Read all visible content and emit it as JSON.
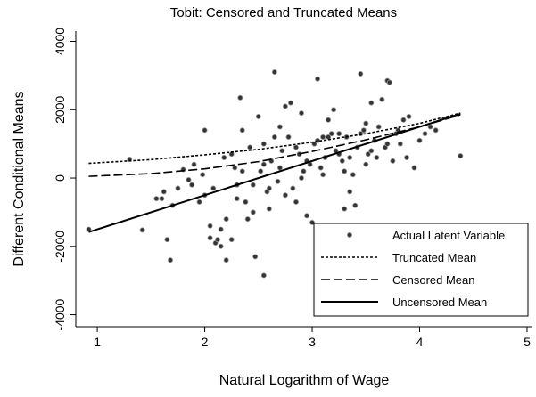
{
  "chart_data": {
    "type": "scatter",
    "title": "Tobit: Censored and Truncated Means",
    "xlabel": "Natural Logarithm of Wage",
    "ylabel": "Different Conditional Means",
    "xlim": [
      0.8,
      5.05
    ],
    "ylim": [
      -4350,
      4300
    ],
    "xticks": [
      1,
      2,
      3,
      4,
      5
    ],
    "yticks": [
      -4000,
      -2000,
      0,
      2000,
      4000
    ],
    "legend": "lower right",
    "series": [
      {
        "name": "Actual Latent Variable",
        "style": "points",
        "color": "#333333",
        "x": [
          0.92,
          1.42,
          1.3,
          1.65,
          1.68,
          1.55,
          1.62,
          1.7,
          1.75,
          1.8,
          1.85,
          1.9,
          1.95,
          2.0,
          2.0,
          2.05,
          2.1,
          2.12,
          2.15,
          2.2,
          2.2,
          2.25,
          2.3,
          2.33,
          2.35,
          2.4,
          2.45,
          2.47,
          2.5,
          2.55,
          2.55,
          2.6,
          2.65,
          2.7,
          2.75,
          2.8,
          2.85,
          2.9,
          2.95,
          3.0,
          3.05,
          3.1,
          3.15,
          3.2,
          3.25,
          3.3,
          3.35,
          3.4,
          3.45,
          3.5,
          3.55,
          3.6,
          3.65,
          3.7,
          3.72,
          3.75,
          3.8,
          3.85,
          3.9,
          3.95,
          4.05,
          4.1,
          4.0,
          4.38,
          4.15,
          1.88,
          1.98,
          2.08,
          2.18,
          2.28,
          2.38,
          2.42,
          2.52,
          2.58,
          2.62,
          2.68,
          2.72,
          2.78,
          2.82,
          2.88,
          2.92,
          2.98,
          3.02,
          3.08,
          3.12,
          3.18,
          3.22,
          3.28,
          3.32,
          3.38,
          3.42,
          3.48,
          3.52,
          3.58,
          3.62,
          3.68,
          3.78,
          3.82,
          3.88,
          2.15,
          2.25,
          2.35,
          2.45,
          2.55,
          2.65,
          2.75,
          2.85,
          2.95,
          3.05,
          3.15,
          3.25,
          3.35,
          3.45,
          3.55,
          2.05,
          2.6,
          2.9,
          3.1,
          3.3,
          3.5,
          3.7,
          1.6,
          2.3,
          2.7
        ],
        "values": [
          -1500,
          -1520,
          550,
          -1800,
          -2400,
          -600,
          -400,
          -800,
          -300,
          250,
          -50,
          400,
          -700,
          1400,
          -500,
          -1750,
          -1900,
          -1800,
          -2000,
          -1200,
          -2400,
          -1800,
          -600,
          2350,
          1400,
          -1200,
          -200,
          -2300,
          1800,
          -2850,
          1000,
          -900,
          3100,
          1500,
          2100,
          2200,
          -700,
          1900,
          -1100,
          -1300,
          2900,
          1200,
          1700,
          2000,
          1300,
          -900,
          -400,
          -800,
          3050,
          1600,
          2200,
          600,
          2300,
          2850,
          2800,
          500,
          1400,
          1700,
          1800,
          300,
          1300,
          1500,
          1100,
          650,
          1400,
          -200,
          100,
          -300,
          600,
          300,
          -700,
          900,
          200,
          -400,
          500,
          -100,
          800,
          1200,
          -300,
          700,
          200,
          400,
          1000,
          300,
          600,
          1300,
          800,
          500,
          1200,
          100,
          900,
          1400,
          700,
          1100,
          1500,
          900,
          1300,
          1000,
          600,
          -1500,
          700,
          200,
          -1000,
          400,
          1200,
          -500,
          900,
          500,
          1100,
          1200,
          700,
          600,
          1300,
          800,
          -1400,
          -300,
          0,
          100,
          200,
          400,
          1000,
          -600,
          -200,
          300
        ]
      },
      {
        "name": "Truncated Mean",
        "style": "dotted",
        "color": "#000000",
        "x": [
          0.92,
          1.5,
          2.0,
          2.5,
          3.0,
          3.5,
          4.0,
          4.38
        ],
        "values": [
          430,
          540,
          680,
          840,
          1050,
          1300,
          1600,
          1900
        ]
      },
      {
        "name": "Censored Mean",
        "style": "dashed",
        "color": "#000000",
        "x": [
          0.92,
          1.5,
          2.0,
          2.5,
          3.0,
          3.5,
          4.0,
          4.38
        ],
        "values": [
          50,
          130,
          270,
          480,
          780,
          1120,
          1500,
          1850
        ]
      },
      {
        "name": "Uncensored Mean",
        "style": "solid",
        "color": "#000000",
        "x": [
          0.92,
          4.38
        ],
        "values": [
          -1580,
          1880
        ]
      }
    ]
  }
}
